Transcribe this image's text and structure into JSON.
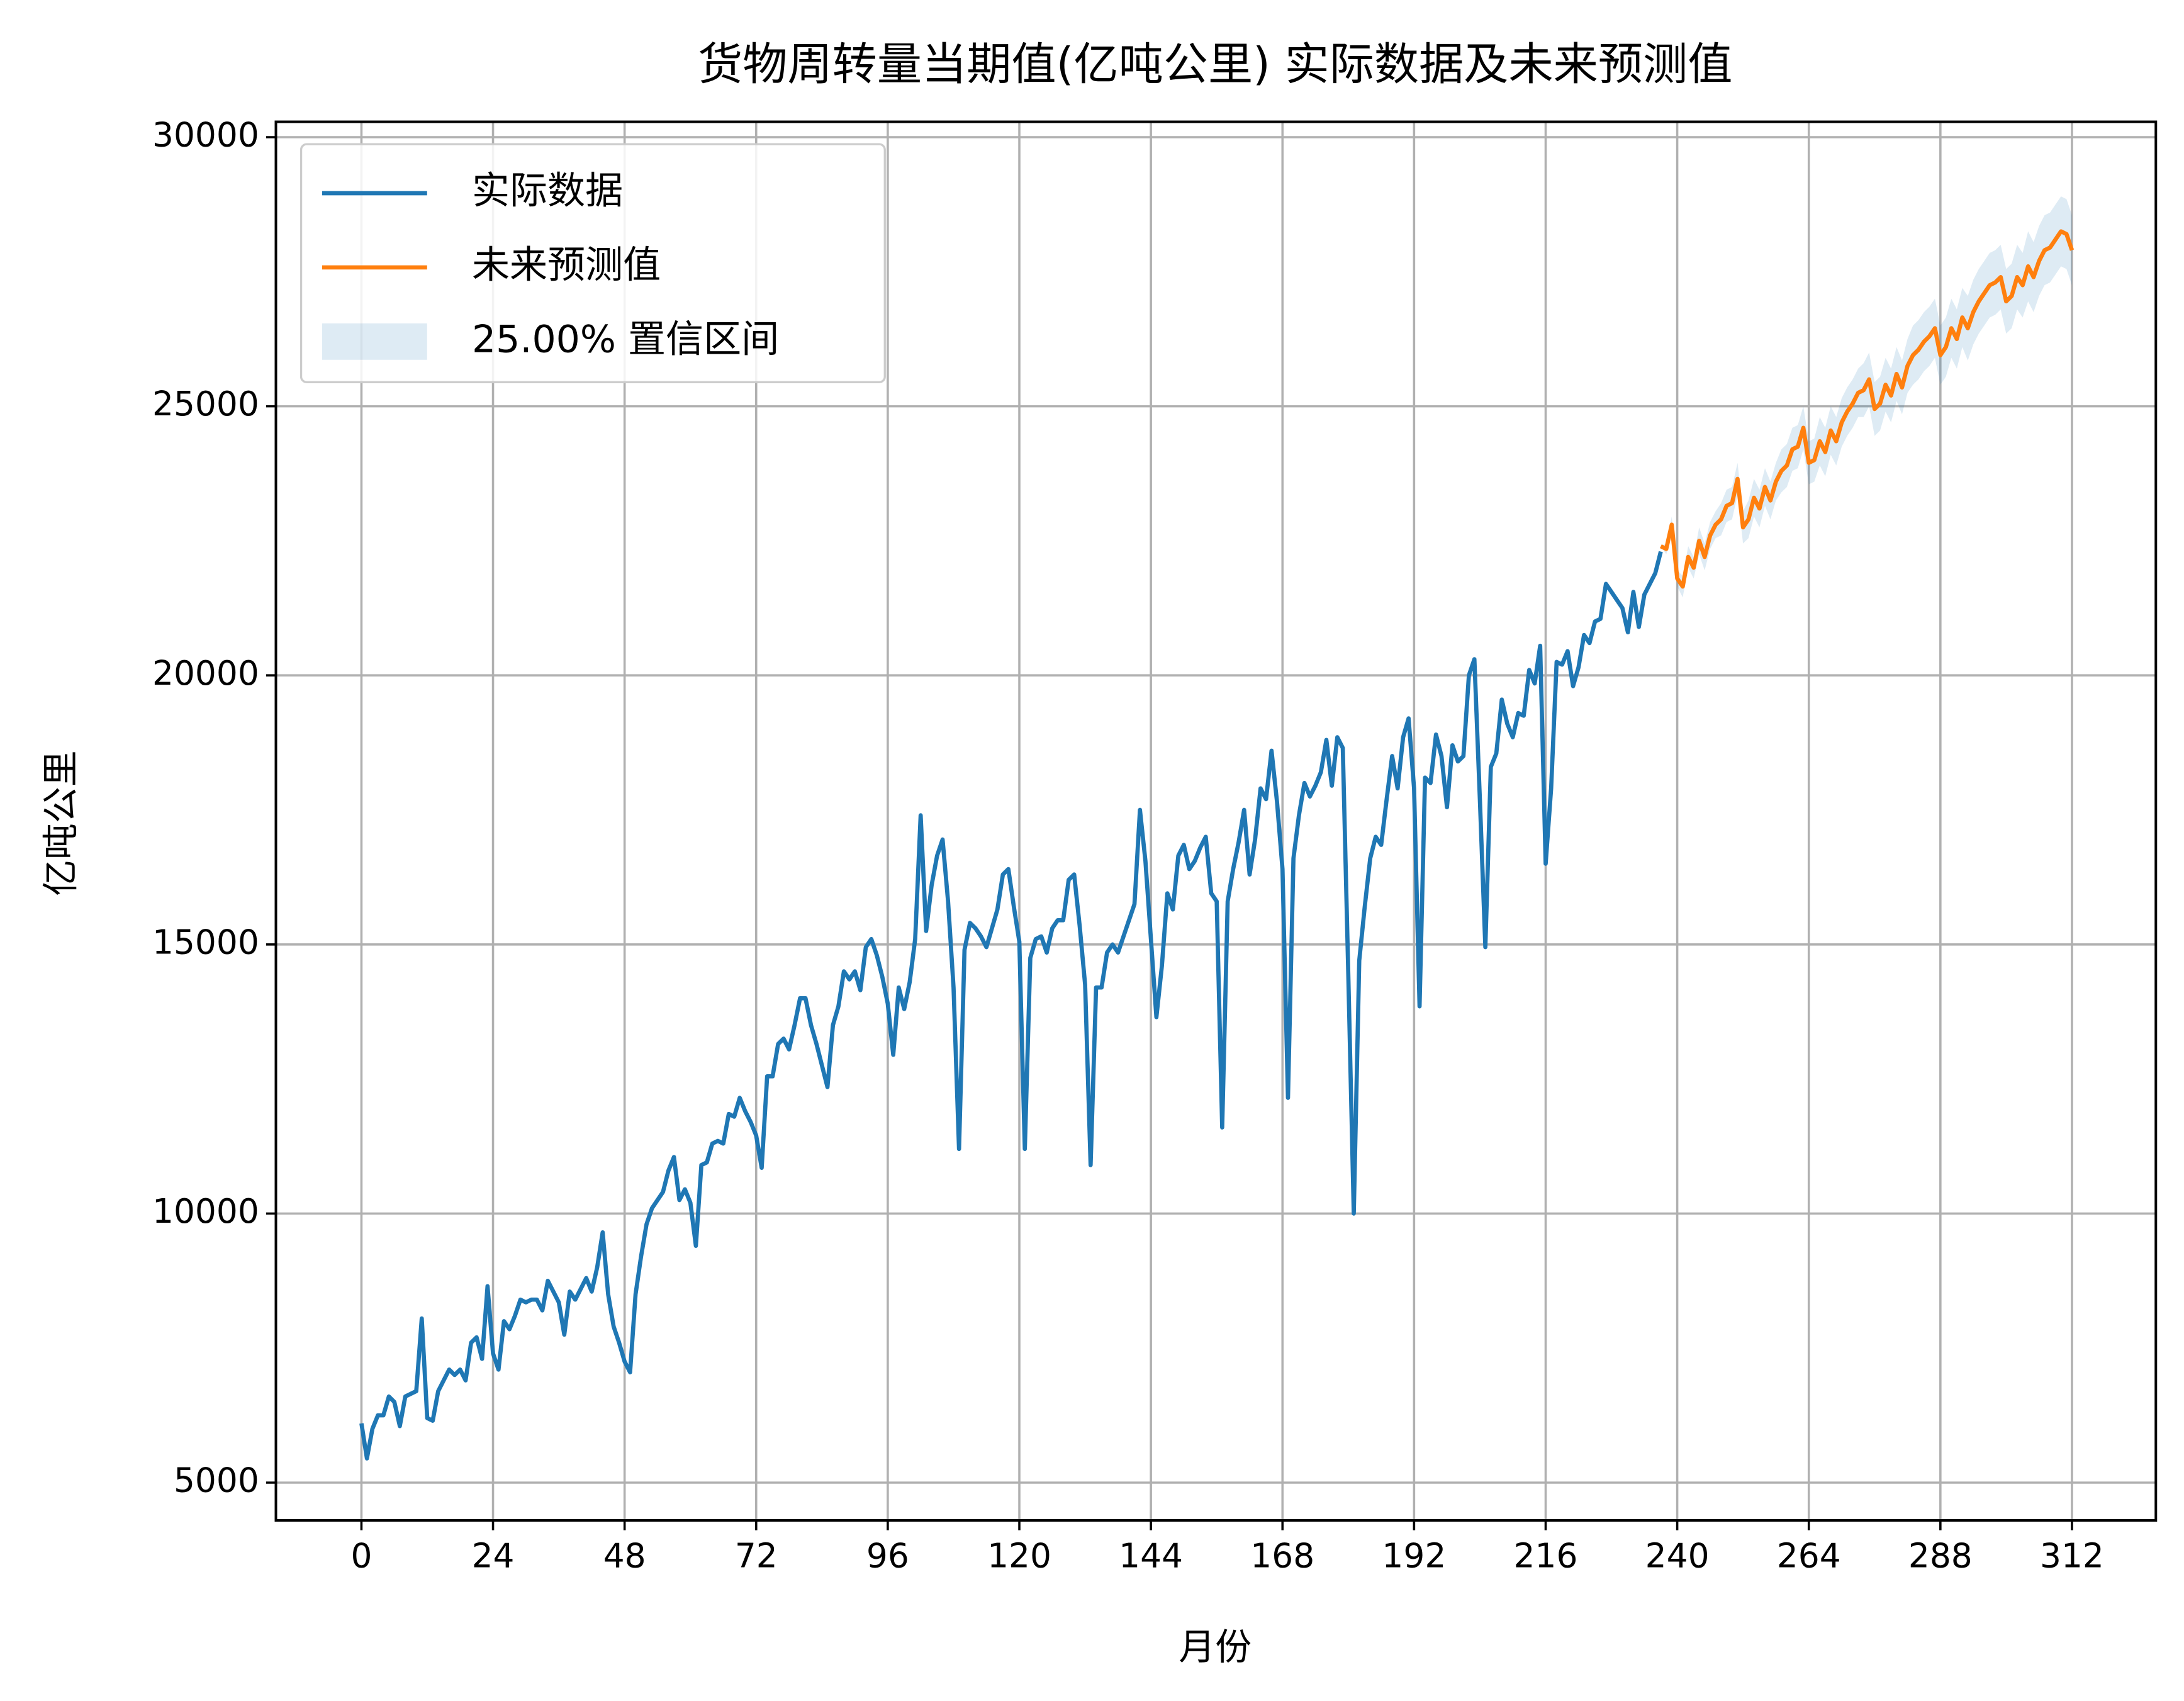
{
  "chart_data": {
    "type": "line",
    "title": "货物周转量当期值(亿吨公里) 实际数据及未来预测值",
    "x_label": "月份",
    "y_label": "亿吨公里",
    "grid": true,
    "legend": "upper left",
    "xlim": [
      -15.6,
      327.3
    ],
    "ylim": [
      4298,
      30286
    ],
    "xticks": [
      0,
      24,
      48,
      72,
      96,
      120,
      144,
      168,
      192,
      216,
      240,
      264,
      288,
      312
    ],
    "yticks": [
      5000,
      10000,
      15000,
      20000,
      25000,
      30000
    ],
    "series": [
      {
        "name": "实际数据",
        "color": "#1f77b4",
        "x": [
          0,
          1,
          2,
          3,
          4,
          5,
          6,
          7,
          8,
          9,
          10,
          11,
          12,
          13,
          14,
          15,
          16,
          17,
          18,
          19,
          20,
          21,
          22,
          23,
          24,
          25,
          26,
          27,
          28,
          29,
          30,
          31,
          32,
          33,
          34,
          35,
          36,
          37,
          38,
          39,
          40,
          41,
          42,
          43,
          44,
          45,
          46,
          47,
          48,
          49,
          50,
          51,
          52,
          53,
          54,
          55,
          56,
          57,
          58,
          59,
          60,
          61,
          62,
          63,
          64,
          65,
          66,
          67,
          68,
          69,
          70,
          71,
          72,
          73,
          74,
          75,
          76,
          77,
          78,
          79,
          80,
          81,
          82,
          83,
          84,
          85,
          86,
          87,
          88,
          89,
          90,
          91,
          92,
          93,
          94,
          95,
          96,
          97,
          98,
          99,
          100,
          101,
          102,
          103,
          104,
          105,
          106,
          107,
          108,
          109,
          110,
          111,
          112,
          113,
          114,
          115,
          116,
          117,
          118,
          119,
          120,
          121,
          122,
          123,
          124,
          125,
          126,
          127,
          128,
          129,
          130,
          131,
          132,
          133,
          134,
          135,
          136,
          137,
          138,
          139,
          140,
          141,
          142,
          143,
          144,
          145,
          146,
          147,
          148,
          149,
          150,
          151,
          152,
          153,
          154,
          155,
          156,
          157,
          158,
          159,
          160,
          161,
          162,
          163,
          164,
          165,
          166,
          167,
          168,
          169,
          170,
          171,
          172,
          173,
          174,
          175,
          176,
          177,
          178,
          179,
          180,
          181,
          182,
          183,
          184,
          185,
          186,
          187,
          188,
          189,
          190,
          191,
          192,
          193,
          194,
          195,
          196,
          197,
          198,
          199,
          200,
          201,
          202,
          203,
          204,
          205,
          206,
          207,
          208,
          209,
          210,
          211,
          212,
          213,
          214,
          215,
          216,
          217,
          218,
          219,
          220,
          221,
          222,
          223,
          224,
          225,
          226,
          227,
          228,
          229,
          230,
          231,
          232,
          233,
          234,
          235,
          236,
          237
        ],
        "values": [
          6100,
          5450,
          6000,
          6250,
          6250,
          6600,
          6500,
          6050,
          6600,
          6650,
          6700,
          8050,
          6200,
          6150,
          6700,
          6900,
          7100,
          7000,
          7100,
          6900,
          7600,
          7700,
          7300,
          8650,
          7400,
          7100,
          8000,
          7850,
          8100,
          8400,
          8350,
          8400,
          8400,
          8200,
          8750,
          8550,
          8350,
          7750,
          8550,
          8400,
          8600,
          8800,
          8550,
          9000,
          9650,
          8500,
          7900,
          7600,
          7250,
          7050,
          8500,
          9200,
          9800,
          10100,
          10250,
          10400,
          10800,
          11050,
          10250,
          10450,
          10200,
          9400,
          10900,
          10950,
          11300,
          11350,
          11300,
          11850,
          11800,
          12150,
          11900,
          11700,
          11450,
          10850,
          12550,
          12550,
          13150,
          13250,
          13050,
          13500,
          14000,
          14000,
          13500,
          13150,
          12750,
          12350,
          13500,
          13850,
          14500,
          14350,
          14500,
          14150,
          14950,
          15100,
          14800,
          14400,
          13900,
          12950,
          14200,
          13800,
          14300,
          15100,
          17400,
          15250,
          16100,
          16650,
          16950,
          15800,
          14200,
          11200,
          14900,
          15400,
          15300,
          15150,
          14950,
          15300,
          15650,
          16300,
          16400,
          15700,
          15050,
          11200,
          14750,
          15100,
          15150,
          14850,
          15300,
          15450,
          15450,
          16200,
          16300,
          15350,
          14250,
          10900,
          14200,
          14200,
          14850,
          15000,
          14850,
          15150,
          15450,
          15750,
          17500,
          16550,
          15100,
          13650,
          14600,
          15950,
          15650,
          16650,
          16850,
          16400,
          16550,
          16800,
          17000,
          15950,
          15800,
          11600,
          15800,
          16400,
          16900,
          17500,
          16300,
          16950,
          17900,
          17700,
          18600,
          17650,
          16400,
          12150,
          16600,
          17400,
          18000,
          17750,
          17950,
          18200,
          18800,
          17950,
          18850,
          18650,
          14450,
          10000,
          14700,
          15700,
          16600,
          17000,
          16850,
          17700,
          18500,
          17900,
          18850,
          19200,
          17900,
          13850,
          18100,
          18000,
          18900,
          18500,
          17550,
          18700,
          18400,
          18500,
          20000,
          20300,
          17700,
          14950,
          18300,
          18550,
          19550,
          19100,
          18850,
          19300,
          19250,
          20100,
          19850,
          20550,
          16500,
          17900,
          20250,
          20200,
          20450,
          19800,
          20150,
          20750,
          20600,
          21000,
          21050,
          21700,
          21550,
          21400,
          21250,
          20800,
          21550,
          20900,
          21500,
          21700,
          21900,
          22300
        ]
      },
      {
        "name": "未来预测值",
        "color": "#ff7f0e",
        "x": [
          237,
          238,
          239,
          240,
          241,
          242,
          243,
          244,
          245,
          246,
          247,
          248,
          249,
          250,
          251,
          252,
          253,
          254,
          255,
          256,
          257,
          258,
          259,
          260,
          261,
          262,
          263,
          264,
          265,
          266,
          267,
          268,
          269,
          270,
          271,
          272,
          273,
          274,
          275,
          276,
          277,
          278,
          279,
          280,
          281,
          282,
          283,
          284,
          285,
          286,
          287,
          288,
          289,
          290,
          291,
          292,
          293,
          294,
          295,
          296,
          297,
          298,
          299,
          300,
          301,
          302,
          303,
          304,
          305,
          306,
          307,
          308,
          309,
          310,
          311,
          312
        ],
        "values": [
          22400,
          22350,
          22800,
          21800,
          21650,
          22200,
          22000,
          22500,
          22200,
          22600,
          22800,
          22900,
          23150,
          23200,
          23650,
          22750,
          22900,
          23300,
          23100,
          23500,
          23250,
          23600,
          23800,
          23900,
          24200,
          24250,
          24600,
          23950,
          24000,
          24350,
          24150,
          24550,
          24350,
          24700,
          24900,
          25050,
          25250,
          25300,
          25500,
          24950,
          25050,
          25400,
          25200,
          25600,
          25350,
          25750,
          25950,
          26050,
          26200,
          26300,
          26450,
          25950,
          26100,
          26450,
          26250,
          26650,
          26450,
          26750,
          26950,
          27100,
          27250,
          27300,
          27400,
          26950,
          27050,
          27400,
          27250,
          27600,
          27400,
          27700,
          27900,
          27950,
          28100,
          28250,
          28200,
          27900
        ]
      }
    ],
    "band": {
      "name": "25.00% 置信区间",
      "color": "#1f77b4",
      "series": 1,
      "errors": [
        0,
        100,
        150,
        150,
        200,
        200,
        200,
        250,
        250,
        250,
        250,
        300,
        300,
        300,
        300,
        300,
        350,
        350,
        350,
        350,
        350,
        350,
        400,
        400,
        400,
        400,
        400,
        400,
        400,
        450,
        450,
        450,
        450,
        450,
        450,
        450,
        450,
        500,
        500,
        500,
        500,
        500,
        500,
        500,
        500,
        500,
        550,
        550,
        550,
        550,
        550,
        550,
        550,
        550,
        550,
        550,
        600,
        600,
        600,
        600,
        600,
        600,
        600,
        600,
        600,
        600,
        600,
        650,
        650,
        650,
        650,
        650,
        650,
        650,
        650,
        650
      ]
    }
  }
}
